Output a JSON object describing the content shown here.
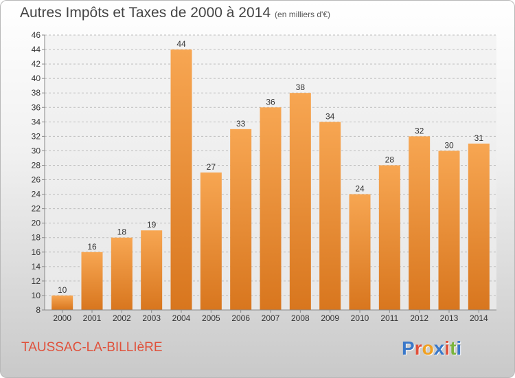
{
  "header": {
    "title": "Autres Impôts et Taxes de 2000 à 2014",
    "subtitle": "(en milliers d'€)"
  },
  "footer": {
    "commune": "TAUSSAC-LA-BILLIèRE",
    "brand": "Proxiti",
    "brand_colors": [
      "#3a78c9",
      "#e0503a",
      "#f0a020",
      "#3a78c9",
      "#e0503a",
      "#7ab43c",
      "#3a78c9"
    ]
  },
  "colors": {
    "bar_top": "#f7a652",
    "bar_bottom": "#d8761e",
    "grid": "#bdbdbd",
    "axis_text": "#333333"
  },
  "chart_data": {
    "type": "bar",
    "title": "Autres Impôts et Taxes de 2000 à 2014",
    "subtitle": "(en milliers d'€)",
    "categories": [
      "2000",
      "2001",
      "2002",
      "2003",
      "2004",
      "2005",
      "2006",
      "2007",
      "2008",
      "2009",
      "2010",
      "2011",
      "2012",
      "2013",
      "2014"
    ],
    "values": [
      10,
      16,
      18,
      19,
      44,
      27,
      33,
      36,
      38,
      34,
      24,
      28,
      32,
      30,
      31
    ],
    "ylim": [
      8,
      46
    ],
    "yticks": [
      8,
      10,
      12,
      14,
      16,
      18,
      20,
      22,
      24,
      26,
      28,
      30,
      32,
      34,
      36,
      38,
      40,
      42,
      44,
      46
    ],
    "grid": true,
    "data_labels": true,
    "xlabel": "",
    "ylabel": ""
  }
}
